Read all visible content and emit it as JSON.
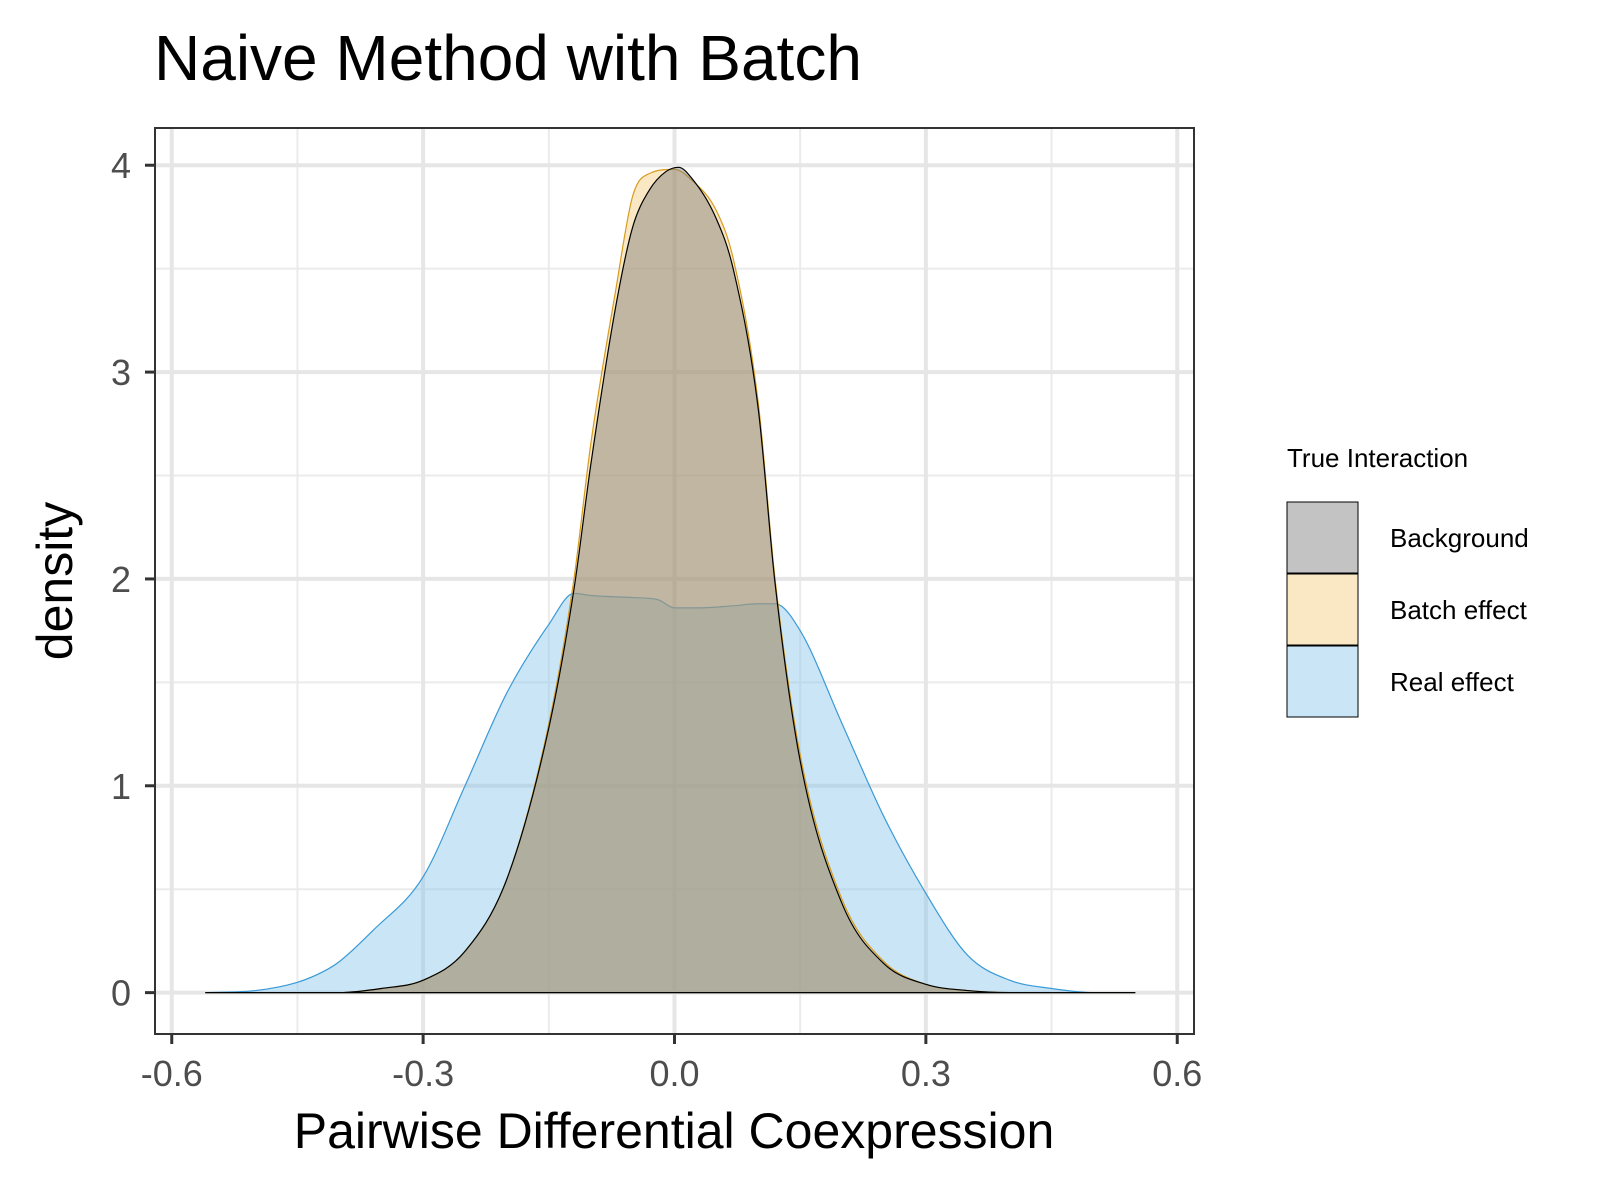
{
  "chart_data": {
    "type": "area",
    "title": "Naive Method with Batch",
    "xlabel": "Pairwise Differential Coexpression",
    "ylabel": "density",
    "xlim": [
      -0.62,
      0.62
    ],
    "ylim": [
      -0.2,
      4.18
    ],
    "x_ticks": [
      "-0.6",
      "-0.3",
      "0.0",
      "0.3",
      "0.6"
    ],
    "x_tick_values": [
      -0.6,
      -0.3,
      0.0,
      0.3,
      0.6
    ],
    "y_ticks": [
      "0",
      "1",
      "2",
      "3",
      "4"
    ],
    "y_tick_values": [
      0,
      1,
      2,
      3,
      4
    ],
    "grid": true,
    "legend": {
      "title": "True Interaction",
      "placement": "right"
    },
    "series": [
      {
        "name": "Real effect",
        "fill": "#87c5ec",
        "stroke": "#3a9ad6",
        "x": [
          -0.56,
          -0.5,
          -0.45,
          -0.42,
          -0.4,
          -0.36,
          -0.3,
          -0.25,
          -0.2,
          -0.15,
          -0.12,
          -0.1,
          -0.05,
          -0.02,
          0.0,
          0.03,
          0.07,
          0.1,
          0.12,
          0.15,
          0.2,
          0.25,
          0.3,
          0.35,
          0.4,
          0.45,
          0.5,
          0.55
        ],
        "y": [
          0.0,
          0.01,
          0.05,
          0.1,
          0.15,
          0.3,
          0.56,
          1.0,
          1.45,
          1.78,
          1.93,
          1.92,
          1.91,
          1.9,
          1.86,
          1.86,
          1.87,
          1.88,
          1.88,
          1.75,
          1.3,
          0.85,
          0.48,
          0.18,
          0.06,
          0.02,
          0.0,
          0.0
        ]
      },
      {
        "name": "Batch effect",
        "fill": "#f4c97a",
        "stroke": "#d69c20",
        "x": [
          -0.56,
          -0.4,
          -0.35,
          -0.3,
          -0.25,
          -0.2,
          -0.15,
          -0.12,
          -0.1,
          -0.07,
          -0.05,
          -0.03,
          0.0,
          0.02,
          0.05,
          0.07,
          0.1,
          0.12,
          0.15,
          0.2,
          0.25,
          0.3,
          0.35,
          0.4,
          0.55
        ],
        "y": [
          0.0,
          0.0,
          0.02,
          0.06,
          0.2,
          0.55,
          1.3,
          2.0,
          2.65,
          3.4,
          3.85,
          3.96,
          3.98,
          3.93,
          3.78,
          3.55,
          2.85,
          2.0,
          1.15,
          0.45,
          0.15,
          0.04,
          0.01,
          0.0,
          0.0
        ]
      },
      {
        "name": "Background",
        "fill": "#7a7a7a",
        "stroke": "#000000",
        "x": [
          -0.56,
          -0.4,
          -0.35,
          -0.3,
          -0.25,
          -0.2,
          -0.15,
          -0.12,
          -0.1,
          -0.07,
          -0.05,
          -0.03,
          -0.01,
          0.005,
          0.02,
          0.05,
          0.07,
          0.1,
          0.12,
          0.15,
          0.2,
          0.25,
          0.3,
          0.35,
          0.4,
          0.55
        ],
        "y": [
          0.0,
          0.0,
          0.02,
          0.06,
          0.2,
          0.55,
          1.28,
          1.95,
          2.55,
          3.32,
          3.7,
          3.88,
          3.97,
          3.99,
          3.94,
          3.74,
          3.5,
          2.82,
          1.98,
          1.12,
          0.43,
          0.14,
          0.04,
          0.01,
          0.0,
          0.0
        ]
      }
    ]
  }
}
